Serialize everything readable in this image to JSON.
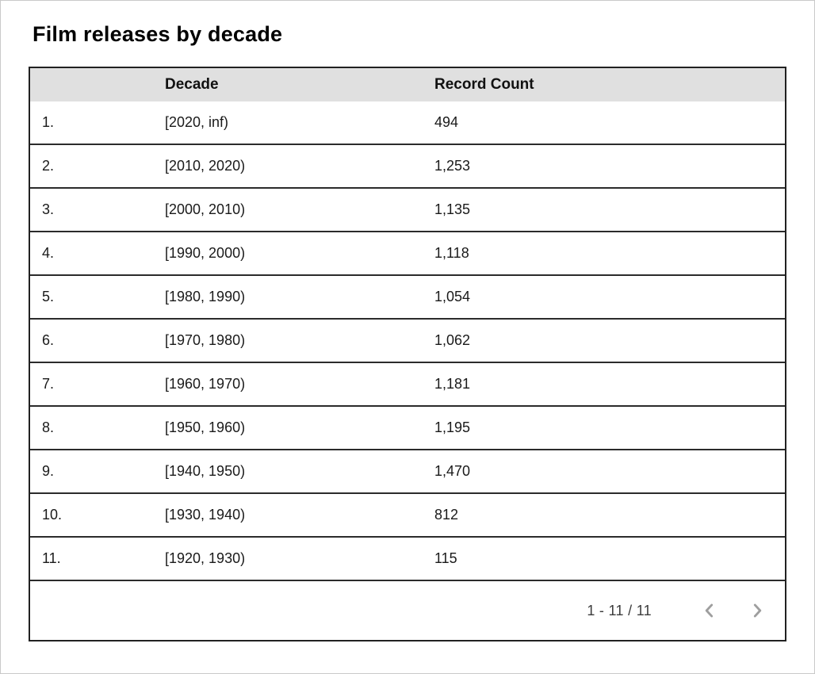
{
  "page": {
    "title": "Film releases by decade"
  },
  "table": {
    "columns": {
      "index": "",
      "decade": "Decade",
      "count": "Record Count"
    },
    "rows": [
      {
        "index": "1.",
        "decade": "[2020, inf)",
        "count": "494"
      },
      {
        "index": "2.",
        "decade": "[2010, 2020)",
        "count": "1,253"
      },
      {
        "index": "3.",
        "decade": "[2000, 2010)",
        "count": "1,135"
      },
      {
        "index": "4.",
        "decade": "[1990, 2000)",
        "count": "1,118"
      },
      {
        "index": "5.",
        "decade": "[1980, 1990)",
        "count": "1,054"
      },
      {
        "index": "6.",
        "decade": "[1970, 1980)",
        "count": "1,062"
      },
      {
        "index": "7.",
        "decade": "[1960, 1970)",
        "count": "1,181"
      },
      {
        "index": "8.",
        "decade": "[1950, 1960)",
        "count": "1,195"
      },
      {
        "index": "9.",
        "decade": "[1940, 1950)",
        "count": "1,470"
      },
      {
        "index": "10.",
        "decade": "[1930, 1940)",
        "count": "812"
      },
      {
        "index": "11.",
        "decade": "[1920, 1930)",
        "count": "115"
      }
    ],
    "pagination": {
      "range_label": "1 - 11 / 11",
      "prev_icon": "chevron-left",
      "next_icon": "chevron-right"
    }
  },
  "colors": {
    "header_bg": "#e0e0e0",
    "table_border": "#212121",
    "row_separator": "#2b2b2b",
    "chevron": "#9e9e9e",
    "text": "#1a1a1a"
  },
  "chart_data": {
    "type": "table",
    "title": "Film releases by decade",
    "columns": [
      "Decade",
      "Record Count"
    ],
    "categories": [
      "[2020, inf)",
      "[2010, 2020)",
      "[2000, 2010)",
      "[1990, 2000)",
      "[1980, 1990)",
      "[1970, 1980)",
      "[1960, 1970)",
      "[1950, 1960)",
      "[1940, 1950)",
      "[1930, 1940)",
      "[1920, 1930)"
    ],
    "values": [
      494,
      1253,
      1135,
      1118,
      1054,
      1062,
      1181,
      1195,
      1470,
      812,
      115
    ],
    "pagination": "1 - 11 / 11"
  }
}
